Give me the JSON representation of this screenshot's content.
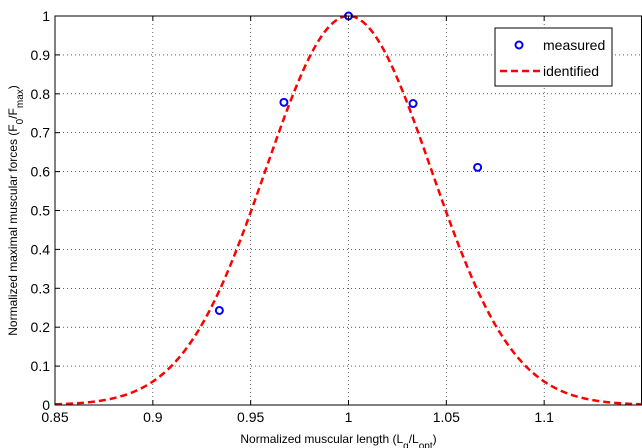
{
  "chart_data": {
    "type": "line",
    "xlabel": {
      "main": "Normalized muscular length (L",
      "sub1": "q",
      "mid": "/L",
      "sub2": "opt",
      "end": ")"
    },
    "ylabel": {
      "main": "Normalized maximal muscular forces (F",
      "sub1": "0",
      "mid": "/F",
      "sub2": "max",
      "end": ")"
    },
    "xlim": [
      0.85,
      1.15
    ],
    "ylim": [
      0,
      1
    ],
    "xticks": [
      0.85,
      0.9,
      0.95,
      1,
      1.05,
      1.1
    ],
    "xtick_labels": [
      "0.85",
      "0.9",
      "0.95",
      "1",
      "1.05",
      "1.1"
    ],
    "yticks": [
      0,
      0.1,
      0.2,
      0.3,
      0.4,
      0.5,
      0.6,
      0.7,
      0.8,
      0.9,
      1
    ],
    "ytick_labels": [
      "0",
      "0.1",
      "0.2",
      "0.3",
      "0.4",
      "0.5",
      "0.6",
      "0.7",
      "0.8",
      "0.9",
      "1"
    ],
    "grid": true,
    "legend_position": "top-right",
    "series": [
      {
        "name": "measured",
        "style": "markers-circle",
        "color": "#0000ff",
        "x": [
          0.934,
          0.967,
          1.0,
          1.033,
          1.066
        ],
        "y": [
          0.243,
          0.778,
          1.0,
          0.775,
          0.611
        ]
      },
      {
        "name": "identified",
        "style": "dashed-line",
        "color": "#ff0000",
        "function": "gaussian",
        "center": 1.0,
        "sigma": 0.0422,
        "x_range": [
          0.85,
          1.15
        ]
      }
    ]
  }
}
